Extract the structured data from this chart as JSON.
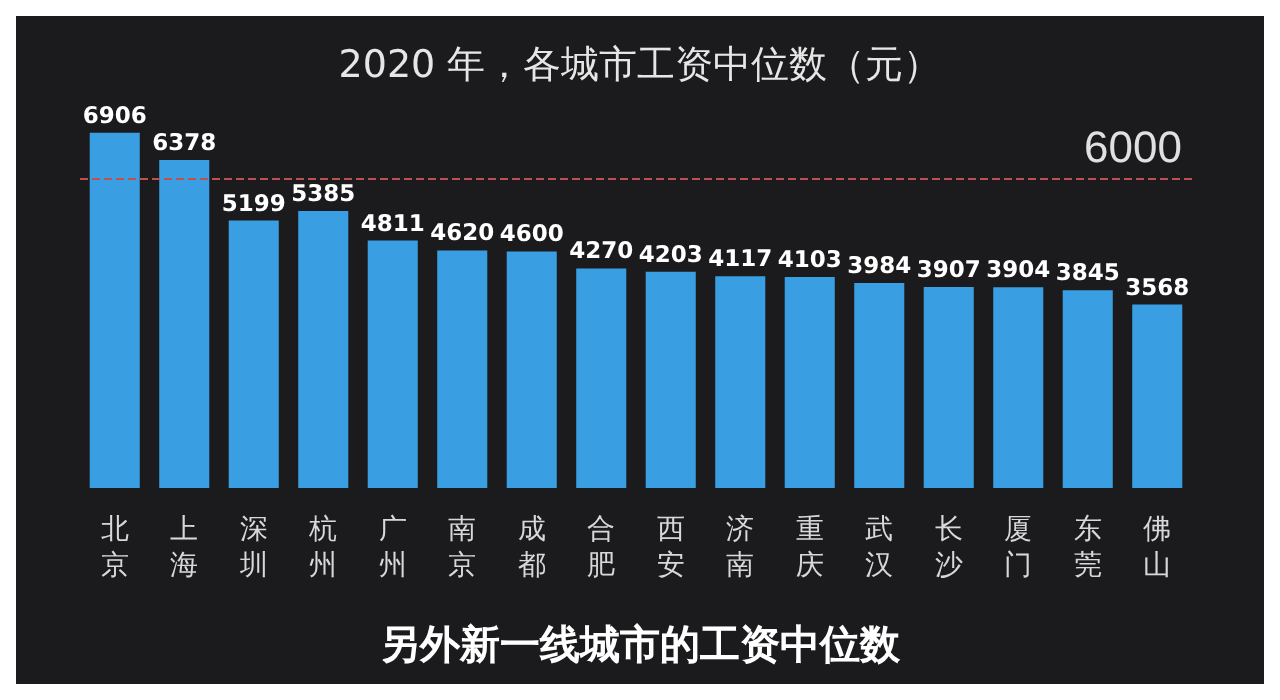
{
  "chart_data": {
    "type": "bar",
    "title": "2020 年，各城市工资中位数（元）",
    "categories": [
      "北京",
      "上海",
      "深圳",
      "杭州",
      "广州",
      "南京",
      "成都",
      "合肥",
      "西安",
      "济南",
      "重庆",
      "武汉",
      "长沙",
      "厦门",
      "东莞",
      "佛山"
    ],
    "values": [
      6906,
      6378,
      5199,
      5385,
      4811,
      4620,
      4600,
      4270,
      4203,
      4117,
      4103,
      3984,
      3907,
      3904,
      3845,
      3568
    ],
    "color": "#3a9fe2",
    "data_labels": true,
    "ref_lines": [
      {
        "axis": "y",
        "value": 6000,
        "label": "6000",
        "color": "#c0504d",
        "line_style": "dashed"
      }
    ],
    "annotations": [
      "另外新一线城市的工资中位数"
    ]
  }
}
